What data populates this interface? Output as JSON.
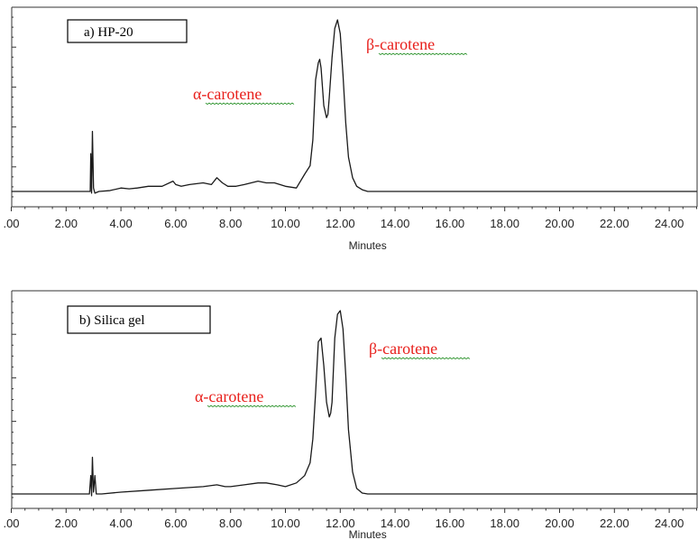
{
  "chart_data": [
    {
      "type": "line",
      "panel_label": "a) HP-20",
      "xlabel": "Minutes",
      "xlim": [
        0,
        25
      ],
      "x_ticks": [
        ".00",
        "2.00",
        "4.00",
        "6.00",
        "8.00",
        "10.00",
        "12.00",
        "14.00",
        "16.00",
        "18.00",
        "20.00",
        "22.00",
        "24.00"
      ],
      "annotations": [
        {
          "text": "α-carotene",
          "x": 10.9
        },
        {
          "text": "β-carotene",
          "x": 12.5
        }
      ],
      "series": [
        {
          "x": [
            0,
            2.8,
            2.88,
            2.9,
            2.93,
            2.96,
            3.0,
            3.05,
            3.2,
            3.6,
            4.0,
            4.3,
            4.6,
            5.0,
            5.5,
            5.9,
            6.0,
            6.2,
            6.5,
            7.0,
            7.3,
            7.5,
            7.7,
            7.9,
            8.2,
            8.5,
            9.0,
            9.3,
            9.6,
            10.0,
            10.4,
            10.7,
            10.9,
            11.0,
            11.1,
            11.2,
            11.25,
            11.3,
            11.4,
            11.5,
            11.55,
            11.6,
            11.7,
            11.8,
            11.9,
            12.0,
            12.1,
            12.2,
            12.3,
            12.45,
            12.6,
            12.8,
            13.0,
            25
          ],
          "y": [
            0,
            0,
            0,
            0.22,
            -0.01,
            0.35,
            0.02,
            -0.01,
            0.0,
            0.005,
            0.02,
            0.015,
            0.02,
            0.03,
            0.03,
            0.06,
            0.04,
            0.03,
            0.04,
            0.05,
            0.04,
            0.08,
            0.05,
            0.03,
            0.03,
            0.04,
            0.06,
            0.05,
            0.05,
            0.03,
            0.02,
            0.1,
            0.15,
            0.3,
            0.65,
            0.75,
            0.77,
            0.72,
            0.5,
            0.43,
            0.45,
            0.55,
            0.78,
            0.95,
            1.0,
            0.92,
            0.68,
            0.4,
            0.2,
            0.08,
            0.03,
            0.01,
            0,
            0
          ]
        }
      ]
    },
    {
      "type": "line",
      "panel_label": "b) Silica  gel",
      "xlabel": "Minutes",
      "xlim": [
        0,
        25
      ],
      "x_ticks": [
        ".00",
        "2.00",
        "4.00",
        "6.00",
        "8.00",
        "10.00",
        "12.00",
        "14.00",
        "16.00",
        "18.00",
        "20.00",
        "22.00",
        "24.00"
      ],
      "annotations": [
        {
          "text": "α-carotene",
          "x": 11.0
        },
        {
          "text": "β-carotene",
          "x": 12.5
        }
      ],
      "series": [
        {
          "x": [
            0,
            2.85,
            2.9,
            2.93,
            2.96,
            3.0,
            3.05,
            3.1,
            3.3,
            4.0,
            5.0,
            6.0,
            7.0,
            7.5,
            7.8,
            8.0,
            8.5,
            9.0,
            9.3,
            9.7,
            10.0,
            10.4,
            10.7,
            10.9,
            11.0,
            11.1,
            11.2,
            11.3,
            11.4,
            11.5,
            11.6,
            11.65,
            11.7,
            11.8,
            11.9,
            12.0,
            12.1,
            12.2,
            12.3,
            12.45,
            12.6,
            12.8,
            13.0,
            25
          ],
          "y": [
            0,
            0,
            0.1,
            -0.01,
            0.2,
            0.01,
            0.1,
            0.0,
            0.0,
            0.01,
            0.02,
            0.03,
            0.04,
            0.05,
            0.04,
            0.04,
            0.05,
            0.06,
            0.06,
            0.05,
            0.04,
            0.06,
            0.1,
            0.17,
            0.3,
            0.55,
            0.83,
            0.85,
            0.7,
            0.5,
            0.42,
            0.44,
            0.5,
            0.85,
            0.98,
            1.0,
            0.9,
            0.65,
            0.35,
            0.12,
            0.03,
            0.005,
            0,
            0
          ]
        }
      ]
    }
  ]
}
